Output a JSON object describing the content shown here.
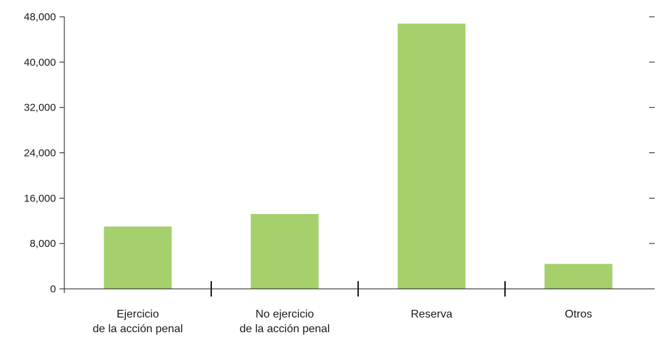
{
  "chart_data": {
    "type": "bar",
    "categories": [
      [
        "Ejercicio",
        "de la acción penal"
      ],
      [
        "No ejercicio",
        "de la acción penal"
      ],
      [
        "Reserva"
      ],
      [
        "Otros"
      ]
    ],
    "values": [
      11000,
      13200,
      46800,
      4400
    ],
    "yticks": [
      0,
      8000,
      16000,
      24000,
      32000,
      40000,
      48000
    ],
    "ytick_labels": [
      "0",
      "8,000",
      "16,000",
      "24,000",
      "32,000",
      "40,000",
      "48,000"
    ],
    "ylim": [
      0,
      48000
    ],
    "grid": false,
    "title": "",
    "xlabel": "",
    "ylabel": "",
    "colors": {
      "bar": "#a5d06c",
      "axis": "#1a1a1a"
    }
  }
}
